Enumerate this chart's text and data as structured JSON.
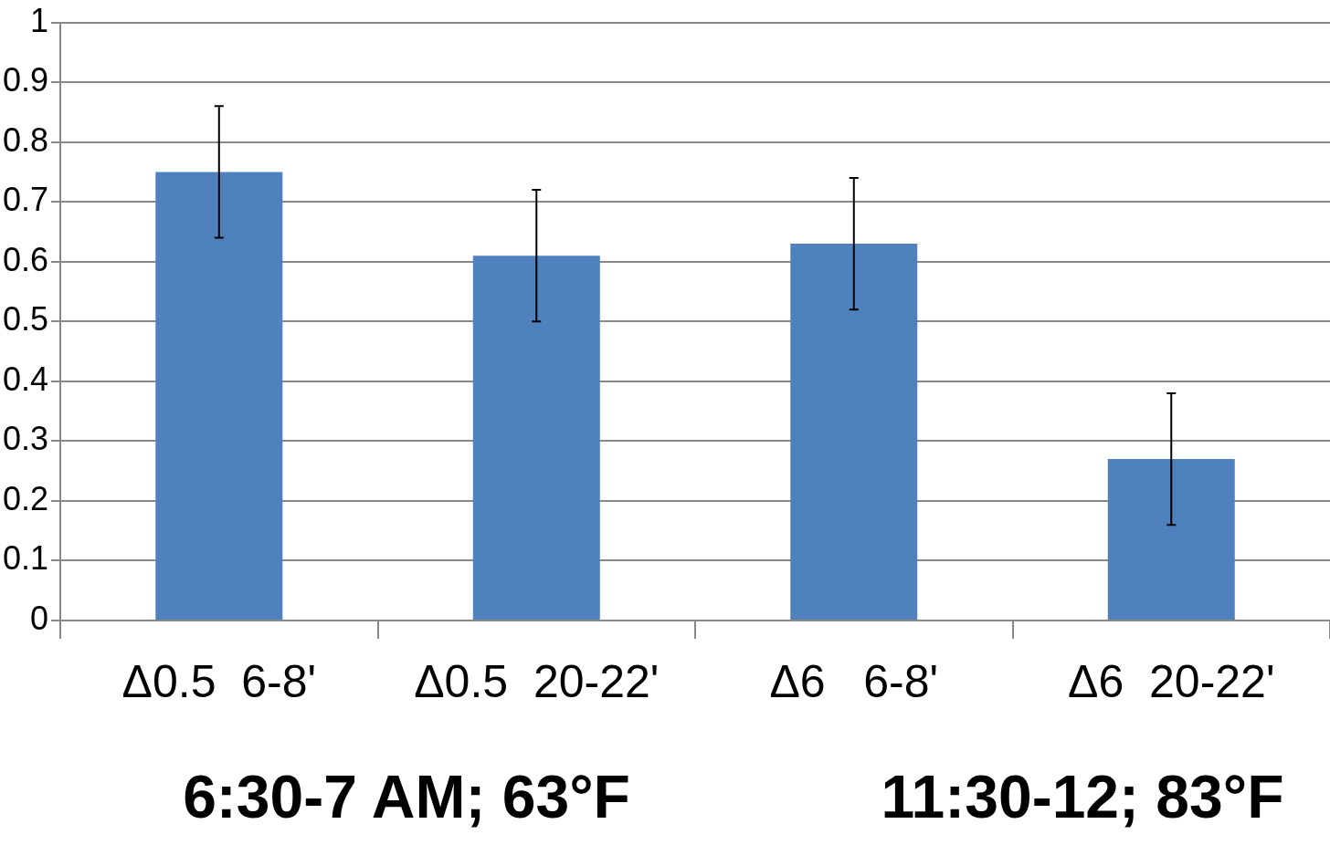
{
  "chart_data": {
    "type": "bar",
    "categories": [
      "Δ0.5  6-8'",
      "Δ0.5  20-22'",
      "Δ6   6-8'",
      "Δ6  20-22'"
    ],
    "values": [
      0.75,
      0.61,
      0.63,
      0.27
    ],
    "errors": [
      0.11,
      0.11,
      0.11,
      0.11
    ],
    "color": "#4f81bd",
    "ylim": [
      0,
      1
    ],
    "yticks": [
      0,
      0.1,
      0.2,
      0.3,
      0.4,
      0.5,
      0.6,
      0.7,
      0.8,
      0.9,
      1
    ],
    "grid": "y",
    "legend": false,
    "annotations": [
      "6:30-7 AM; 63°F",
      "11:30-12; 83°F"
    ]
  }
}
